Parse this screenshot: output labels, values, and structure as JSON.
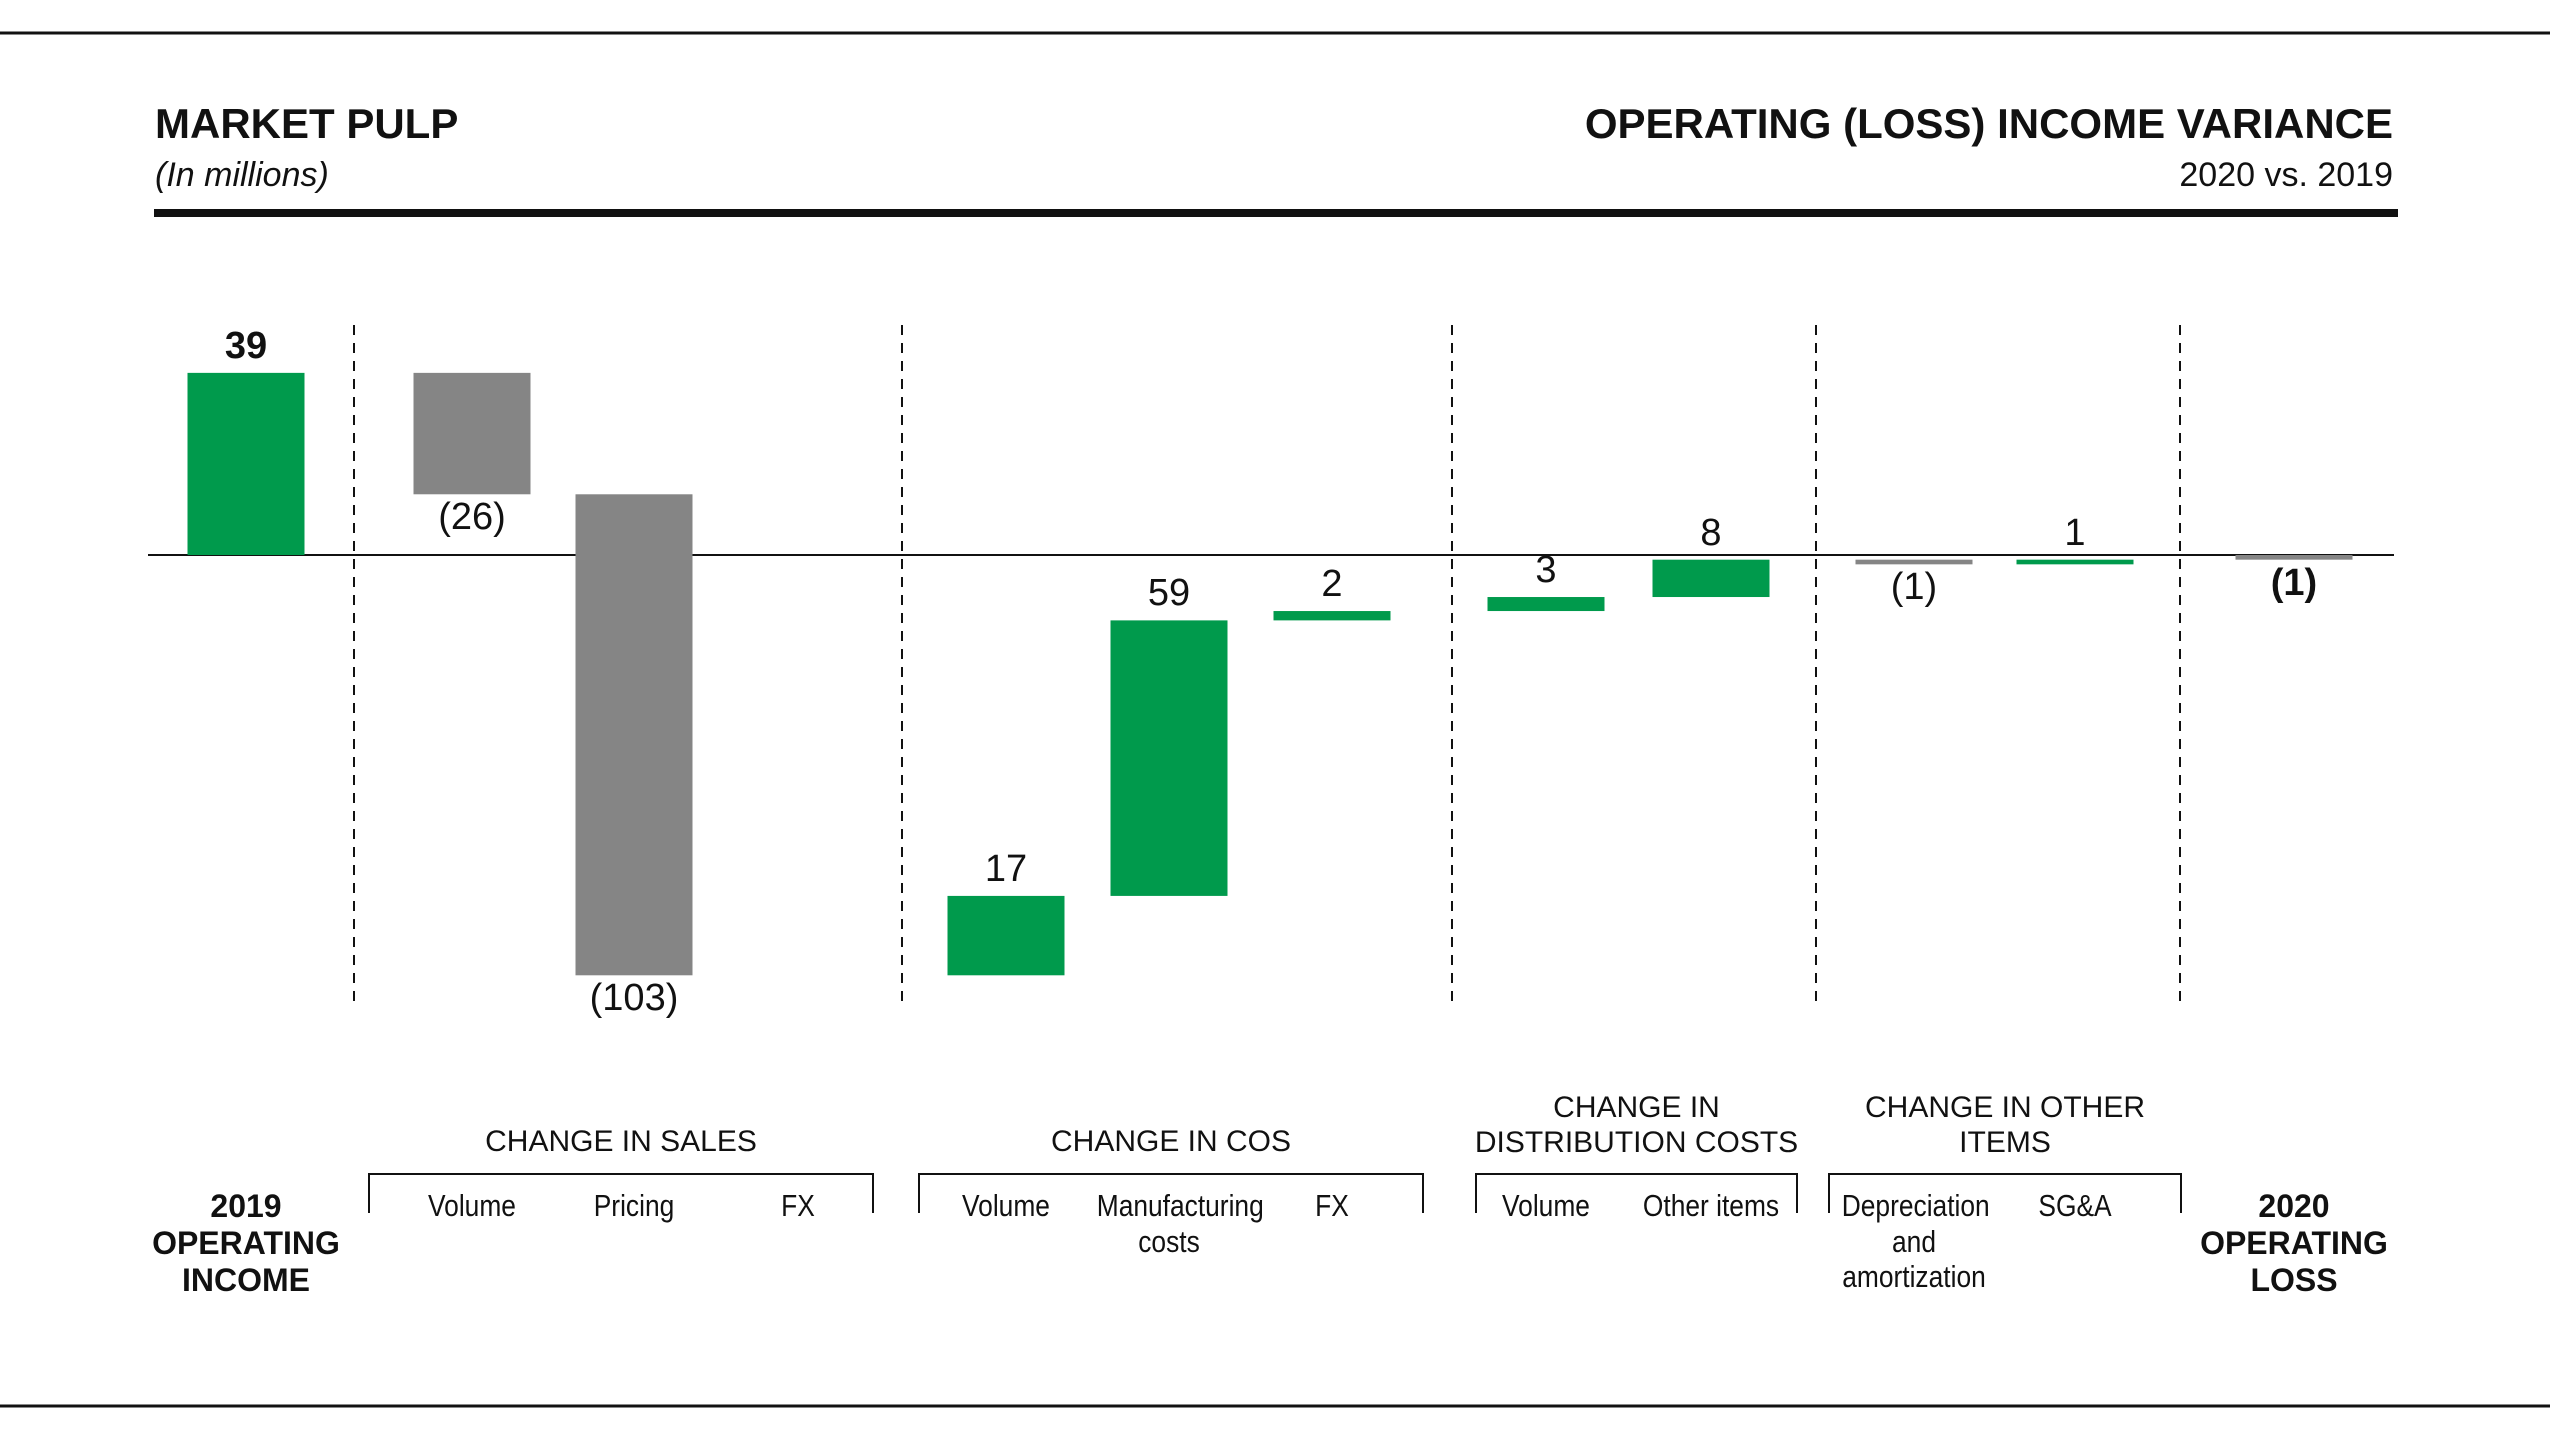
{
  "chart_data": {
    "type": "waterfall",
    "title": "MARKET PULP",
    "subtitle": "(In millions)",
    "right_title": "OPERATING (LOSS) INCOME VARIANCE",
    "right_subtitle": "2020 vs. 2019",
    "categories": [
      "2019 OPERATING INCOME",
      "Volume",
      "Pricing",
      "FX",
      "Volume",
      "Manufacturing costs",
      "FX",
      "Volume",
      "Other items",
      "Depreciation and amortization",
      "SG&A",
      "2020 OPERATING LOSS"
    ],
    "groups": [
      "CHANGE IN SALES",
      "CHANGE IN COS",
      "CHANGE IN DISTRIBUTION COSTS",
      "CHANGE IN OTHER ITEMS"
    ],
    "values": [
      39,
      -26,
      -103,
      null,
      17,
      59,
      2,
      3,
      8,
      -1,
      1,
      -1
    ],
    "value_labels": [
      "39",
      "(26)",
      "(103)",
      null,
      "17",
      "59",
      "2",
      "3",
      "8",
      "(1)",
      "1",
      "(1)"
    ],
    "colors": {
      "positive": "#009a4c",
      "negative": "#858585"
    }
  }
}
